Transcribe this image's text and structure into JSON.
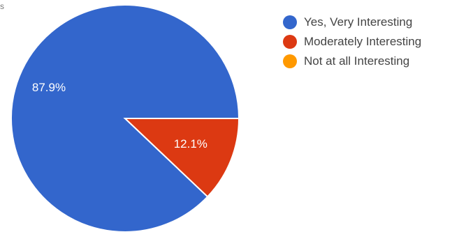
{
  "edge_text": "s",
  "colors": {
    "yes": "#3366cc",
    "moderate": "#dc3912",
    "not": "#ff9900",
    "slice_label": "#ffffff",
    "slice_border": "#ffffff"
  },
  "chart_data": {
    "type": "pie",
    "title": "",
    "slices": [
      {
        "name": "Yes, Very Interesting",
        "value": 87.9,
        "label": "87.9%",
        "color_key": "yes"
      },
      {
        "name": "Moderately Interesting",
        "value": 12.1,
        "label": "12.1%",
        "color_key": "moderate"
      },
      {
        "name": "Not at all Interesting",
        "value": 0,
        "label": "",
        "color_key": "not"
      }
    ],
    "legend_position": "right"
  },
  "legend": {
    "items": [
      {
        "label": "Yes, Very Interesting",
        "color": "#3366cc"
      },
      {
        "label": "Moderately Interesting",
        "color": "#dc3912"
      },
      {
        "label": "Not at all Interesting",
        "color": "#ff9900"
      }
    ]
  }
}
